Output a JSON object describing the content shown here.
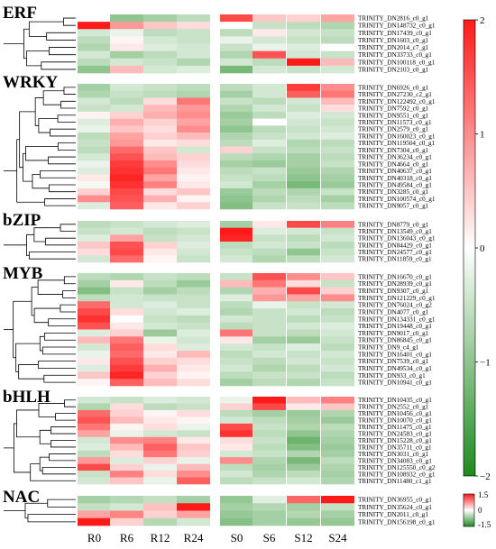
{
  "chart_data": {
    "type": "heatmap",
    "columns": [
      "R0",
      "R6",
      "R12",
      "R24",
      "S0",
      "S6",
      "S12",
      "S24"
    ],
    "colors": {
      "low": "#1e8a1e",
      "mid": "#ffffff",
      "high": "#ff1a1a"
    },
    "colorbar": {
      "min": -2,
      "max": 2,
      "ticks": [
        2,
        1,
        0,
        -1,
        -2
      ],
      "tick_labels": [
        "2",
        "1",
        "0",
        "−1",
        "−2"
      ]
    },
    "nac_colorbar": {
      "min": -1.5,
      "max": 1.5,
      "tick_labels": [
        "1.5",
        "0",
        "-1.5"
      ]
    },
    "groups": [
      {
        "name": "ERF",
        "rows": [
          {
            "label": "TRINITY_DN2816_c0_g1",
            "values": [
              0.0,
              -1.0,
              -0.8,
              -0.6,
              1.6,
              0.5,
              0.4,
              0.8
            ]
          },
          {
            "label": "TRINITY_DN148732_c0_g1",
            "values": [
              2.0,
              0.9,
              0.5,
              0.3,
              0.0,
              -0.5,
              -0.6,
              -0.7
            ]
          },
          {
            "label": "TRINITY_DN17439_c0_g1",
            "values": [
              -0.4,
              -0.2,
              -0.6,
              -0.5,
              -0.6,
              0.2,
              -0.4,
              -0.5
            ]
          },
          {
            "label": "TRINITY_DN1603_c0_g1",
            "values": [
              -0.6,
              0.1,
              -0.4,
              -0.5,
              -0.2,
              -0.4,
              -0.5,
              -0.6
            ]
          },
          {
            "label": "TRINITY_DN2014_c7_g1",
            "values": [
              -0.7,
              0.2,
              -0.3,
              -0.4,
              -0.5,
              -0.2,
              -0.3,
              0.0
            ]
          },
          {
            "label": "TRINITY_DN33733_c0_g1",
            "values": [
              -0.4,
              -0.8,
              -0.6,
              -0.4,
              -0.7,
              1.5,
              -0.4,
              -0.5
            ]
          },
          {
            "label": "TRINITY_DN100118_c0_g1",
            "values": [
              -0.6,
              -0.4,
              -0.5,
              -0.7,
              -0.4,
              -0.6,
              2.0,
              0.6
            ]
          },
          {
            "label": "TRINITY_DN2103_c0_g1",
            "values": [
              -1.0,
              0.6,
              -0.4,
              -0.3,
              -1.2,
              -0.4,
              -0.5,
              -0.4
            ]
          }
        ]
      },
      {
        "name": "WRKY",
        "rows": [
          {
            "label": "TRINITY_DN6926_c0_g1",
            "values": [
              -0.8,
              -0.4,
              -0.5,
              -0.6,
              -0.6,
              -0.4,
              1.7,
              1.0
            ]
          },
          {
            "label": "TRINITY_DN27230_c2_g1",
            "values": [
              -0.7,
              -0.5,
              -0.6,
              -0.7,
              -0.8,
              -0.4,
              1.4,
              1.2
            ]
          },
          {
            "label": "TRINITY_DN122492_c0_g1",
            "values": [
              -0.4,
              -0.6,
              0.3,
              1.2,
              -0.5,
              -0.6,
              -0.4,
              0.6
            ]
          },
          {
            "label": "TRINITY_DN7592_c0_g1",
            "values": [
              -0.5,
              -0.4,
              0.6,
              0.9,
              -0.7,
              -0.4,
              -0.5,
              0.3
            ]
          },
          {
            "label": "TRINITY_DN9551_c0_g1",
            "values": [
              0.1,
              0.4,
              0.7,
              1.0,
              -0.9,
              -0.6,
              -0.3,
              -0.4
            ]
          },
          {
            "label": "TRINITY_DN11573_c0_g1",
            "values": [
              -0.3,
              0.7,
              0.4,
              0.8,
              -0.8,
              0.0,
              -0.4,
              -0.5
            ]
          },
          {
            "label": "TRINITY_DN2579_c0_g1",
            "values": [
              -0.2,
              0.5,
              0.3,
              1.0,
              -1.0,
              -0.6,
              -0.5,
              -0.4
            ]
          },
          {
            "label": "TRINITY_DN160023_c0_g1",
            "values": [
              -0.6,
              0.8,
              0.4,
              0.6,
              -0.7,
              -0.5,
              -0.4,
              -0.3
            ]
          },
          {
            "label": "TRINITY_DN119504_c0_g1",
            "values": [
              -0.5,
              0.9,
              0.2,
              0.3,
              -0.6,
              -0.3,
              -0.7,
              -0.6
            ]
          },
          {
            "label": "TRINITY_DN7304_c0_g1",
            "values": [
              -0.6,
              1.3,
              0.5,
              -0.4,
              0.4,
              -0.5,
              -0.6,
              -0.5
            ]
          },
          {
            "label": "TRINITY_DN36234_c0_g1",
            "values": [
              -0.4,
              1.5,
              0.6,
              0.4,
              -0.6,
              -0.7,
              -0.8,
              -0.6
            ]
          },
          {
            "label": "TRINITY_DN4664_c0_g1",
            "values": [
              -0.2,
              1.7,
              1.0,
              0.3,
              -0.8,
              -0.9,
              -0.8,
              -0.5
            ]
          },
          {
            "label": "TRINITY_DN40637_c0_g1",
            "values": [
              -0.3,
              1.8,
              1.2,
              0.2,
              -0.6,
              -0.5,
              -0.9,
              -0.7
            ]
          },
          {
            "label": "TRINITY_DN40318_c0_g1",
            "values": [
              0.2,
              1.9,
              0.8,
              0.1,
              -0.5,
              -0.6,
              -1.0,
              -0.8
            ]
          },
          {
            "label": "TRINITY_DN49584_c0_g1",
            "values": [
              -0.1,
              1.8,
              1.1,
              0.2,
              -0.4,
              -0.8,
              -1.2,
              -0.9
            ]
          },
          {
            "label": "TRINITY_DN3285_c0_g1",
            "values": [
              0.4,
              1.6,
              0.3,
              0.5,
              -0.9,
              -0.6,
              -0.7,
              -0.5
            ]
          },
          {
            "label": "TRINITY_DN100574_c0_g1",
            "values": [
              1.0,
              1.5,
              0.7,
              0.1,
              -1.0,
              -0.7,
              -0.6,
              -0.8
            ]
          },
          {
            "label": "TRINITY_DN9057_c0_g1",
            "values": [
              -0.3,
              1.4,
              0.2,
              0.4,
              -1.1,
              -0.5,
              -0.5,
              -0.6
            ]
          }
        ]
      },
      {
        "name": "bZIP",
        "rows": [
          {
            "label": "TRINITY_DN8779_c0_g1",
            "values": [
              -0.6,
              -0.5,
              -0.4,
              -0.3,
              -0.8,
              0.2,
              1.6,
              1.1
            ]
          },
          {
            "label": "TRINITY_DN13549_c0_g1",
            "values": [
              -0.5,
              -0.4,
              -0.6,
              -0.5,
              2.0,
              -0.3,
              -0.4,
              -0.5
            ]
          },
          {
            "label": "TRINITY_DN136043_c0_g1",
            "values": [
              -0.3,
              0.8,
              -0.5,
              -0.4,
              1.9,
              -0.5,
              -0.6,
              -0.4
            ]
          },
          {
            "label": "TRINITY_DN84429_c0_g1",
            "values": [
              0.5,
              1.5,
              0.4,
              -0.3,
              -0.6,
              -0.4,
              -0.5,
              -0.6
            ]
          },
          {
            "label": "TRINITY_DN24577_c0_g1",
            "values": [
              0.3,
              1.6,
              0.2,
              -0.4,
              -0.5,
              -0.6,
              -1.0,
              -0.5
            ]
          },
          {
            "label": "TRINITY_DN11859_c0_g1",
            "values": [
              -0.4,
              1.3,
              0.1,
              -0.5,
              -0.4,
              -0.7,
              -0.6,
              -0.4
            ]
          }
        ]
      },
      {
        "name": "MYB",
        "rows": [
          {
            "label": "TRINITY_DN16670_c0_g1",
            "values": [
              -0.6,
              -0.7,
              -0.5,
              -0.6,
              -0.5,
              1.5,
              1.0,
              0.5
            ]
          },
          {
            "label": "TRINITY_DN28939_c0_g1",
            "values": [
              -0.8,
              0.2,
              -0.6,
              -0.9,
              0.6,
              1.2,
              0.3,
              -0.5
            ]
          },
          {
            "label": "TRINITY_DN9307_c0_g1",
            "values": [
              -1.1,
              -0.5,
              -0.8,
              -0.6,
              -0.7,
              0.7,
              1.6,
              0.4
            ]
          },
          {
            "label": "TRINITY_DN121229_c0_g1",
            "values": [
              -0.6,
              -0.4,
              -0.5,
              -0.5,
              -0.3,
              0.9,
              0.8,
              1.0
            ]
          },
          {
            "label": "TRINITY_DN76024_c0_g2",
            "values": [
              1.3,
              -0.4,
              -0.3,
              -0.5,
              -0.6,
              -0.2,
              -0.5,
              -0.4
            ]
          },
          {
            "label": "TRINITY_DN4077_c0_g1",
            "values": [
              1.6,
              0.3,
              -0.4,
              -0.3,
              -0.7,
              -0.5,
              -0.4,
              -0.6
            ]
          },
          {
            "label": "TRINITY_DN134331_c0_g1",
            "values": [
              1.8,
              0.0,
              -0.5,
              -0.6,
              -0.4,
              -0.5,
              -0.6,
              -0.5
            ]
          },
          {
            "label": "TRINITY_DN19448_c0_g1",
            "values": [
              1.5,
              0.2,
              -0.4,
              -0.5,
              -0.6,
              -0.5,
              -0.4,
              -0.3
            ]
          },
          {
            "label": "TRINITY_DN9017_c0_g1",
            "values": [
              -0.3,
              0.4,
              -0.9,
              -0.3,
              1.2,
              -0.5,
              -0.6,
              -0.4
            ]
          },
          {
            "label": "TRINITY_DN86845_c0_g1",
            "values": [
              0.6,
              1.2,
              -0.2,
              -0.4,
              0.2,
              -0.8,
              -0.9,
              -0.5
            ]
          },
          {
            "label": "TRINITY_DN9_c4_g1",
            "values": [
              -0.4,
              1.4,
              0.3,
              -0.3,
              -0.4,
              -0.5,
              -0.3,
              -0.6
            ]
          },
          {
            "label": "TRINITY_DN16401_c0_g1",
            "values": [
              -0.2,
              1.3,
              0.2,
              0.6,
              -0.6,
              -0.4,
              -0.5,
              -0.4
            ]
          },
          {
            "label": "TRINITY_DN7539_c0_g1",
            "values": [
              0.2,
              1.5,
              0.4,
              0.3,
              -0.5,
              -0.6,
              -0.4,
              -0.5
            ]
          },
          {
            "label": "TRINITY_DN49534_c0_g1",
            "values": [
              -0.3,
              1.7,
              0.7,
              0.2,
              -0.4,
              -0.7,
              -0.6,
              -0.4
            ]
          },
          {
            "label": "TRINITY_DN933_c0_g1",
            "values": [
              0.5,
              1.9,
              0.4,
              0.1,
              -0.6,
              -0.5,
              -0.5,
              -0.6
            ]
          },
          {
            "label": "TRINITY_DN10941_c0_g1",
            "values": [
              0.1,
              1.4,
              0.6,
              0.3,
              -0.8,
              -0.6,
              -0.7,
              -0.5
            ]
          }
        ]
      },
      {
        "name": "bHLH",
        "rows": [
          {
            "label": "TRINITY_DN10435_c0_g1",
            "values": [
              -0.4,
              -0.5,
              -0.3,
              -0.4,
              -0.2,
              2.0,
              0.6,
              1.1
            ]
          },
          {
            "label": "TRINITY_DN2552_c0_g1",
            "values": [
              -0.7,
              0.3,
              -0.6,
              -0.5,
              0.4,
              1.6,
              0.2,
              0.5
            ]
          },
          {
            "label": "TRINITY_DN10456_c0_g1",
            "values": [
              1.3,
              0.4,
              0.1,
              0.3,
              -0.6,
              -0.8,
              -0.9,
              -0.7
            ]
          },
          {
            "label": "TRINITY_DN10070_c0_g1",
            "values": [
              1.5,
              0.6,
              0.2,
              0.1,
              -0.4,
              -0.6,
              -0.8,
              -0.9
            ]
          },
          {
            "label": "TRINITY_DN11475_c0_g1",
            "values": [
              1.2,
              0.1,
              0.3,
              -0.2,
              1.6,
              -0.5,
              -0.7,
              -0.6
            ]
          },
          {
            "label": "TRINITY_DN24583_c0_g1",
            "values": [
              0.8,
              -0.2,
              -0.4,
              -0.5,
              1.8,
              -0.6,
              -1.0,
              -0.7
            ]
          },
          {
            "label": "TRINITY_DN15228_c0_g1",
            "values": [
              -0.4,
              1.0,
              1.1,
              0.2,
              0.3,
              -0.5,
              -1.3,
              -0.8
            ]
          },
          {
            "label": "TRINITY_DN35711_c0_g1",
            "values": [
              -0.3,
              0.6,
              1.4,
              0.5,
              0.2,
              -0.6,
              -1.1,
              -0.9
            ]
          },
          {
            "label": "TRINITY_DN3031_c0_g1",
            "values": [
              -0.6,
              0.3,
              1.2,
              0.4,
              -0.4,
              -0.5,
              -0.7,
              -0.8
            ]
          },
          {
            "label": "TRINITY_DN34083_c0_g1",
            "values": [
              0.9,
              -0.3,
              0.4,
              -0.2,
              1.0,
              -0.7,
              -1.2,
              -0.6
            ]
          },
          {
            "label": "TRINITY_DN125550_c0_g2",
            "values": [
              1.6,
              0.4,
              -0.2,
              0.6,
              -0.6,
              -0.8,
              -0.9,
              -0.7
            ]
          },
          {
            "label": "TRINITY_DN108932_c0_g1",
            "values": [
              -0.5,
              1.1,
              0.3,
              1.0,
              -0.4,
              -0.7,
              -0.6,
              -0.8
            ]
          },
          {
            "label": "TRINITY_DN11480_c1_g1",
            "values": [
              -0.4,
              0.5,
              -0.2,
              1.4,
              -0.6,
              -0.5,
              -0.4,
              -0.7
            ]
          }
        ]
      },
      {
        "name": "NAC",
        "rows": [
          {
            "label": "TRINITY_DN36955_c0_g1",
            "values": [
              -0.6,
              -0.5,
              -0.4,
              -0.6,
              -0.7,
              -0.2,
              1.0,
              1.6
            ]
          },
          {
            "label": "TRINITY_DN35624_c0_g1",
            "values": [
              -0.4,
              -0.3,
              0.4,
              1.7,
              -0.6,
              -0.5,
              -0.6,
              -0.4
            ]
          },
          {
            "label": "TRINITY_DN2011_c0_g1",
            "values": [
              0.6,
              0.8,
              0.3,
              0.6,
              -0.7,
              -0.6,
              -0.5,
              -0.6
            ]
          },
          {
            "label": "TRINITY_DN156198_c0_g1",
            "values": [
              1.6,
              0.3,
              -0.5,
              -0.3,
              -0.8,
              -0.6,
              -0.7,
              -0.7
            ]
          }
        ]
      }
    ]
  }
}
